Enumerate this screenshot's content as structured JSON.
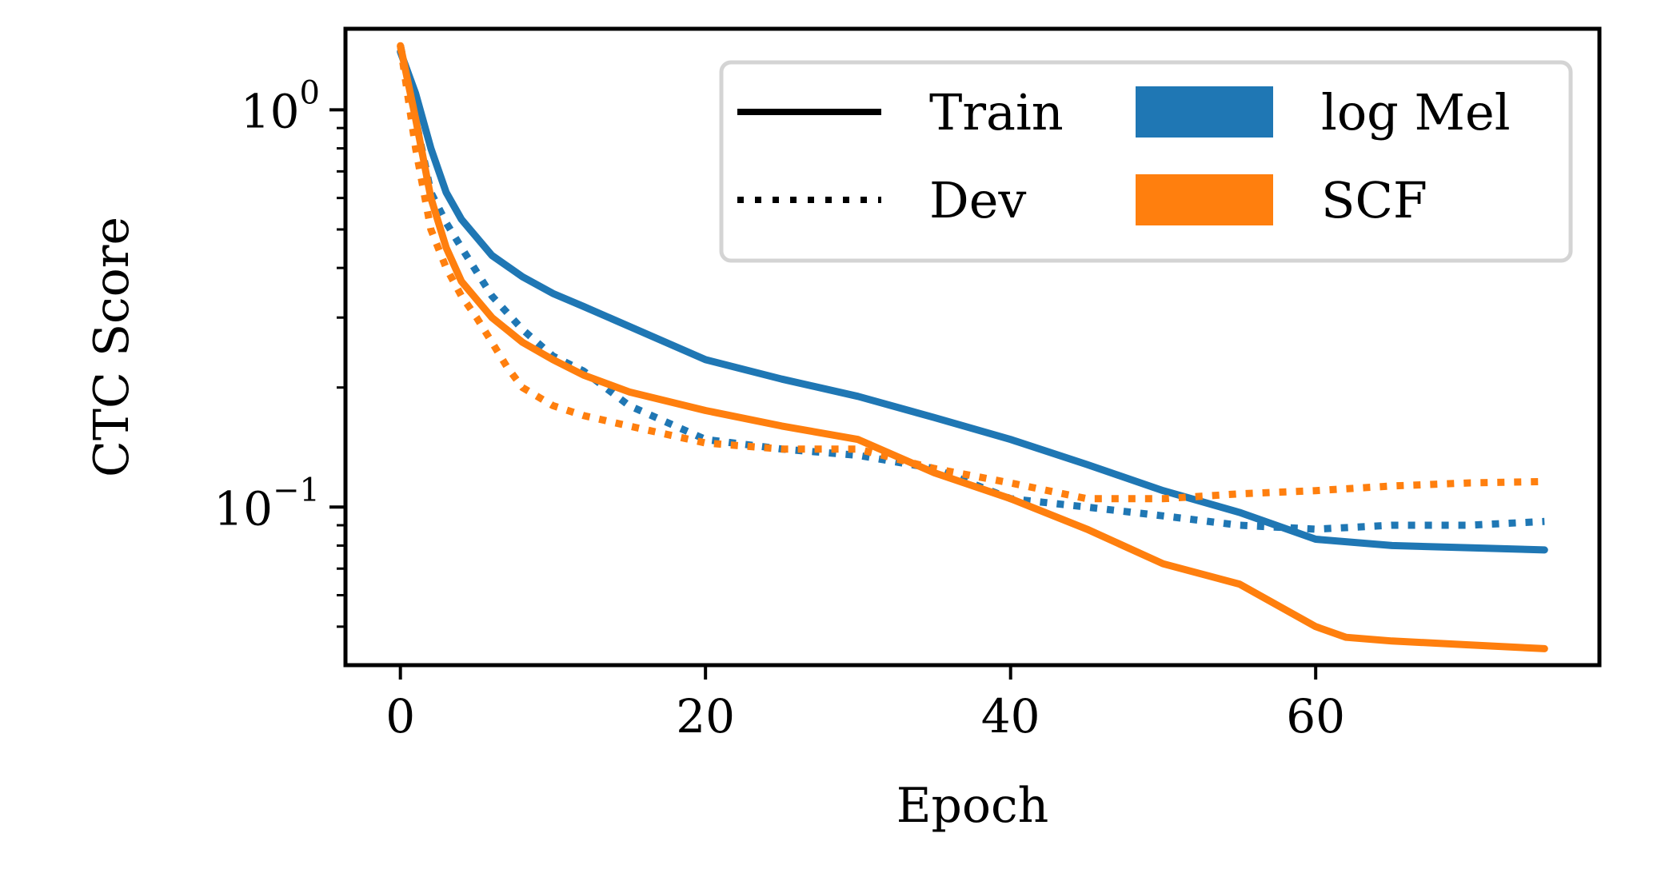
{
  "chart_data": {
    "type": "line",
    "title": "",
    "xlabel": "Epoch",
    "ylabel": "CTC Score",
    "yscale": "log",
    "xlim": [
      -3.6,
      78.6
    ],
    "ylim": [
      0.04,
      1.6
    ],
    "xticks": [
      0,
      20,
      40,
      60
    ],
    "xtick_labels": [
      "0",
      "20",
      "40",
      "60"
    ],
    "yticks": [
      {
        "value": 1.0,
        "base": "10",
        "exp": "0"
      },
      {
        "value": 0.1,
        "base": "10",
        "exp": "−1"
      }
    ],
    "legend": {
      "placement": "upper right",
      "line_entries": [
        {
          "label": "Train",
          "style": "solid"
        },
        {
          "label": "Dev",
          "style": "dotted"
        }
      ],
      "color_entries": [
        {
          "label": "log Mel",
          "color": "#1f77b4"
        },
        {
          "label": "SCF",
          "color": "#ff7f0e"
        }
      ]
    },
    "series": [
      {
        "name": "log Mel Train",
        "feature": "log Mel",
        "split": "Train",
        "color": "#1f77b4",
        "style": "solid",
        "x": [
          0,
          1,
          2,
          3,
          4,
          6,
          8,
          10,
          12,
          15,
          20,
          25,
          30,
          35,
          40,
          45,
          50,
          55,
          60,
          65,
          70,
          75
        ],
        "y": [
          1.4,
          1.1,
          0.8,
          0.62,
          0.53,
          0.43,
          0.38,
          0.345,
          0.32,
          0.285,
          0.235,
          0.21,
          0.19,
          0.168,
          0.148,
          0.128,
          0.11,
          0.097,
          0.083,
          0.08,
          0.079,
          0.078
        ]
      },
      {
        "name": "log Mel Dev",
        "feature": "log Mel",
        "split": "Dev",
        "color": "#1f77b4",
        "style": "dotted",
        "x": [
          0,
          1,
          2,
          3,
          4,
          6,
          8,
          10,
          12,
          15,
          20,
          25,
          30,
          35,
          40,
          45,
          50,
          55,
          60,
          65,
          70,
          75
        ],
        "y": [
          1.45,
          0.95,
          0.62,
          0.52,
          0.45,
          0.34,
          0.28,
          0.24,
          0.22,
          0.18,
          0.148,
          0.14,
          0.135,
          0.125,
          0.105,
          0.1,
          0.095,
          0.09,
          0.088,
          0.09,
          0.09,
          0.092
        ]
      },
      {
        "name": "SCF Train",
        "feature": "SCF",
        "split": "Train",
        "color": "#ff7f0e",
        "style": "solid",
        "x": [
          0,
          1,
          2,
          3,
          4,
          6,
          8,
          10,
          12,
          15,
          20,
          25,
          30,
          35,
          40,
          45,
          50,
          55,
          60,
          62,
          65,
          70,
          75
        ],
        "y": [
          1.45,
          0.95,
          0.6,
          0.45,
          0.37,
          0.3,
          0.26,
          0.235,
          0.215,
          0.195,
          0.175,
          0.16,
          0.148,
          0.122,
          0.105,
          0.088,
          0.072,
          0.064,
          0.05,
          0.047,
          0.046,
          0.045,
          0.044
        ]
      },
      {
        "name": "SCF Dev",
        "feature": "SCF",
        "split": "Dev",
        "color": "#ff7f0e",
        "style": "dotted",
        "x": [
          0,
          1,
          2,
          3,
          4,
          5,
          6,
          7,
          8,
          10,
          12,
          15,
          20,
          25,
          30,
          35,
          40,
          45,
          50,
          55,
          60,
          65,
          70,
          75
        ],
        "y": [
          1.45,
          0.8,
          0.5,
          0.4,
          0.34,
          0.3,
          0.26,
          0.225,
          0.2,
          0.18,
          0.17,
          0.16,
          0.145,
          0.14,
          0.14,
          0.125,
          0.115,
          0.105,
          0.105,
          0.108,
          0.11,
          0.113,
          0.115,
          0.116
        ]
      }
    ]
  }
}
